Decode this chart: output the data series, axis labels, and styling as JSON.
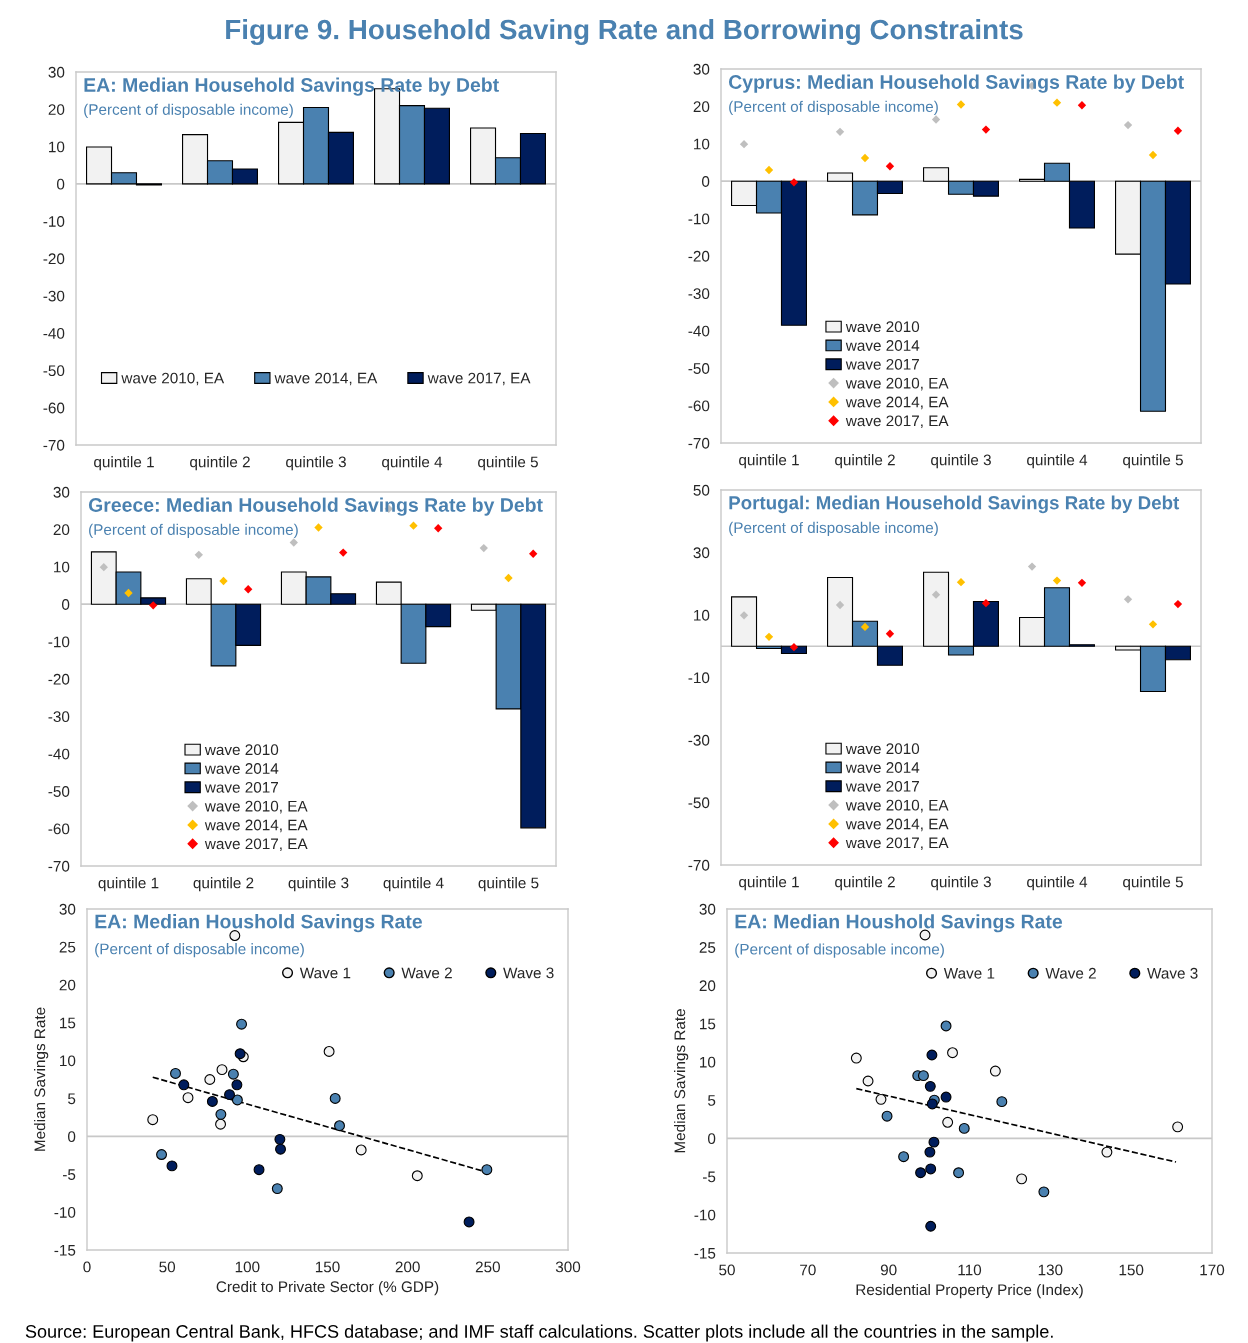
{
  "chart_data": [
    {
      "type": "bar",
      "title": "EA: Median Household Savings Rate by Debt",
      "subtitle": "(Percent of disposable income)",
      "annotations": [
        "Figure 9. Household Saving Rate and Borrowing Constraints"
      ],
      "categories": [
        "quintile 1",
        "quintile 2",
        "quintile 3",
        "quintile 4",
        "quintile 5"
      ],
      "ylim": [
        -70,
        30
      ],
      "yticks": [
        -70,
        -60,
        -50,
        -40,
        -30,
        -20,
        -10,
        0,
        10,
        20,
        30
      ],
      "legend": "bottom",
      "grid": false,
      "ref_lines": [
        {
          "axis": "y",
          "value": 0,
          "color": "#c8c8c8"
        }
      ],
      "series": [
        {
          "name": "wave 2010, EA",
          "color": "#f2f2f2",
          "values": [
            9.9,
            13.2,
            16.5,
            25.5,
            15.0
          ]
        },
        {
          "name": "wave 2014, EA",
          "color": "#4a81b0",
          "values": [
            3.0,
            6.2,
            20.5,
            21.0,
            7.0
          ]
        },
        {
          "name": "wave 2017, EA",
          "color": "#001d5c",
          "values": [
            -0.3,
            4.0,
            13.8,
            20.3,
            13.5
          ]
        }
      ]
    },
    {
      "type": "bar",
      "title": "Cyprus: Median Household Savings Rate by Debt",
      "subtitle": "(Percent of disposable income)",
      "categories": [
        "quintile 1",
        "quintile 2",
        "quintile 3",
        "quintile 4",
        "quintile 5"
      ],
      "ylim": [
        -70,
        30
      ],
      "yticks": [
        -70,
        -60,
        -50,
        -40,
        -30,
        -20,
        -10,
        0,
        10,
        20,
        30
      ],
      "legend": "bottom left",
      "grid": false,
      "ref_lines": [
        {
          "axis": "y",
          "value": 0,
          "color": "#c8c8c8"
        }
      ],
      "series": [
        {
          "name": "wave 2010",
          "color": "#f2f2f2",
          "values": [
            -6.5,
            2.2,
            3.6,
            0.5,
            -19.5
          ]
        },
        {
          "name": "wave 2014",
          "color": "#4a81b0",
          "values": [
            -8.5,
            -9.0,
            -3.5,
            4.8,
            -61.5
          ]
        },
        {
          "name": "wave 2017",
          "color": "#001d5c",
          "values": [
            -38.5,
            -3.3,
            -4.0,
            -12.5,
            -27.5
          ]
        },
        {
          "name": "wave 2010, EA",
          "type": "scatter",
          "marker": "diamond",
          "color": "#bfbfbf",
          "x": [
            "quintile 1",
            "quintile 2",
            "quintile 3",
            "quintile 4",
            "quintile 5"
          ],
          "values": [
            9.9,
            13.2,
            16.5,
            25.5,
            15.0
          ]
        },
        {
          "name": "wave 2014, EA",
          "type": "scatter",
          "marker": "diamond",
          "color": "#ffc000",
          "x": [
            "quintile 1",
            "quintile 2",
            "quintile 3",
            "quintile 4",
            "quintile 5"
          ],
          "values": [
            3.0,
            6.2,
            20.5,
            21.0,
            7.0
          ]
        },
        {
          "name": "wave 2017, EA",
          "type": "scatter",
          "marker": "diamond",
          "color": "#ff0000",
          "x": [
            "quintile 1",
            "quintile 2",
            "quintile 3",
            "quintile 4",
            "quintile 5"
          ],
          "values": [
            -0.3,
            4.0,
            13.8,
            20.3,
            13.5
          ]
        }
      ]
    },
    {
      "type": "bar",
      "title": "Greece: Median Household Savings Rate by Debt",
      "subtitle": "(Percent of disposable income)",
      "categories": [
        "quintile 1",
        "quintile 2",
        "quintile 3",
        "quintile 4",
        "quintile 5"
      ],
      "ylim": [
        -70,
        30
      ],
      "yticks": [
        -70,
        -60,
        -50,
        -40,
        -30,
        -20,
        -10,
        0,
        10,
        20,
        30
      ],
      "legend": "bottom left",
      "grid": false,
      "ref_lines": [
        {
          "axis": "y",
          "value": 0,
          "color": "#c8c8c8"
        }
      ],
      "series": [
        {
          "name": "wave 2010",
          "color": "#f2f2f2",
          "values": [
            14.0,
            6.8,
            8.6,
            5.9,
            -1.6
          ]
        },
        {
          "name": "wave 2014",
          "color": "#4a81b0",
          "values": [
            8.6,
            -16.5,
            7.3,
            -15.8,
            -28.0
          ]
        },
        {
          "name": "wave 2017",
          "color": "#001d5c",
          "values": [
            1.7,
            -11.0,
            2.8,
            -6.0,
            -59.8
          ]
        },
        {
          "name": "wave 2010, EA",
          "type": "scatter",
          "marker": "diamond",
          "color": "#bfbfbf",
          "x": [
            "quintile 1",
            "quintile 2",
            "quintile 3",
            "quintile 4",
            "quintile 5"
          ],
          "values": [
            9.9,
            13.2,
            16.5,
            25.5,
            15.0
          ]
        },
        {
          "name": "wave 2014, EA",
          "type": "scatter",
          "marker": "diamond",
          "color": "#ffc000",
          "x": [
            "quintile 1",
            "quintile 2",
            "quintile 3",
            "quintile 4",
            "quintile 5"
          ],
          "values": [
            3.0,
            6.2,
            20.5,
            21.0,
            7.0
          ]
        },
        {
          "name": "wave 2017, EA",
          "type": "scatter",
          "marker": "diamond",
          "color": "#ff0000",
          "x": [
            "quintile 1",
            "quintile 2",
            "quintile 3",
            "quintile 4",
            "quintile 5"
          ],
          "values": [
            -0.3,
            4.0,
            13.8,
            20.3,
            13.5
          ]
        }
      ]
    },
    {
      "type": "bar",
      "title": "Portugal: Median Household Savings Rate by Debt",
      "subtitle": "(Percent of disposable income)",
      "categories": [
        "quintile 1",
        "quintile 2",
        "quintile 3",
        "quintile 4",
        "quintile 5"
      ],
      "ylim": [
        -70,
        50
      ],
      "yticks": [
        -70,
        -50,
        -30,
        -10,
        10,
        30,
        50
      ],
      "legend": "bottom left",
      "grid": false,
      "ref_lines": [
        {
          "axis": "y",
          "value": 0,
          "color": "#c8c8c8"
        }
      ],
      "series": [
        {
          "name": "wave 2010",
          "color": "#f2f2f2",
          "values": [
            15.8,
            22.0,
            23.7,
            9.2,
            -1.2
          ]
        },
        {
          "name": "wave 2014",
          "color": "#4a81b0",
          "values": [
            -0.7,
            8.0,
            -2.8,
            18.7,
            -14.5
          ]
        },
        {
          "name": "wave 2017",
          "color": "#001d5c",
          "values": [
            -2.3,
            -6.1,
            14.3,
            0.5,
            -4.3
          ]
        },
        {
          "name": "wave 2010, EA",
          "type": "scatter",
          "marker": "diamond",
          "color": "#bfbfbf",
          "x": [
            "quintile 1",
            "quintile 2",
            "quintile 3",
            "quintile 4",
            "quintile 5"
          ],
          "values": [
            9.9,
            13.2,
            16.5,
            25.5,
            15.0
          ]
        },
        {
          "name": "wave 2014, EA",
          "type": "scatter",
          "marker": "diamond",
          "color": "#ffc000",
          "x": [
            "quintile 1",
            "quintile 2",
            "quintile 3",
            "quintile 4",
            "quintile 5"
          ],
          "values": [
            3.0,
            6.2,
            20.5,
            21.0,
            7.0
          ]
        },
        {
          "name": "wave 2017, EA",
          "type": "scatter",
          "marker": "diamond",
          "color": "#ff0000",
          "x": [
            "quintile 1",
            "quintile 2",
            "quintile 3",
            "quintile 4",
            "quintile 5"
          ],
          "values": [
            -0.3,
            4.0,
            13.8,
            20.3,
            13.5
          ]
        }
      ]
    },
    {
      "type": "scatter",
      "title": "EA: Median Houshold Savings Rate",
      "subtitle": "(Percent of disposable income)",
      "xlabel": "Credit to Private Sector (% GDP)",
      "ylabel": "Median Savings Rate",
      "xlim": [
        0,
        300
      ],
      "xticks": [
        0,
        50,
        100,
        150,
        200,
        250,
        300
      ],
      "ylim": [
        -15,
        30
      ],
      "yticks": [
        -15,
        -10,
        -5,
        0,
        5,
        10,
        15,
        20,
        25,
        30
      ],
      "legend": "top right",
      "grid": false,
      "marker": "circle",
      "series": [
        {
          "name": "Wave 1",
          "color": "#f2f2f2",
          "x": [
            41,
            63,
            76.6,
            84.2,
            83.3,
            92.2,
            97.5,
            151,
            171,
            206
          ],
          "values": [
            2.2,
            5.1,
            7.5,
            8.8,
            1.6,
            26.5,
            10.5,
            11.2,
            -1.8,
            -5.2
          ]
        },
        {
          "name": "Wave 2",
          "color": "#4a81b0",
          "x": [
            46.5,
            55.2,
            83.5,
            91.3,
            93.8,
            96.4,
            154.8,
            157.5,
            118.7,
            249.4
          ],
          "values": [
            -2.4,
            8.3,
            2.9,
            8.2,
            4.8,
            14.8,
            5.0,
            1.4,
            -6.9,
            -4.4
          ]
        },
        {
          "name": "Wave 3",
          "color": "#001d5c",
          "x": [
            53,
            60.4,
            78.2,
            88.9,
            93.5,
            95.5,
            107.3,
            120.3,
            120.7,
            238.3
          ],
          "values": [
            -3.9,
            6.8,
            4.6,
            5.5,
            6.8,
            10.9,
            -4.4,
            -0.4,
            -1.7,
            -11.3
          ]
        },
        {
          "type": "line",
          "line_style": "dashed",
          "marker": "none",
          "color": "#000000",
          "x": [
            41,
            249
          ],
          "values": [
            7.8,
            -4.7
          ]
        }
      ],
      "ref_lines": [
        {
          "axis": "y",
          "value": 0,
          "color": "#c8c8c8"
        }
      ]
    },
    {
      "type": "scatter",
      "title": "EA: Median Houshold Savings Rate",
      "subtitle": "(Percent of disposable income)",
      "xlabel": "Residential Property Price (Index)",
      "ylabel": "Median Savings Rate",
      "xlim": [
        50,
        170
      ],
      "xticks": [
        50,
        70,
        90,
        110,
        130,
        150,
        170
      ],
      "ylim": [
        -15,
        30
      ],
      "yticks": [
        -15,
        -10,
        -5,
        0,
        5,
        10,
        15,
        20,
        25,
        30
      ],
      "legend": "top right",
      "grid": false,
      "marker": "circle",
      "annotations": [
        "Source: European Central Bank, HFCS database; and IMF staff calculations. Scatter plots include all the countries in the sample."
      ],
      "series": [
        {
          "name": "Wave 1",
          "color": "#f2f2f2",
          "x": [
            82.0,
            84.9,
            88.1,
            99.0,
            104.6,
            105.8,
            116.4,
            122.9,
            144.0,
            161.5
          ],
          "values": [
            10.5,
            7.5,
            5.1,
            26.6,
            2.1,
            11.2,
            8.8,
            -5.3,
            -1.8,
            1.5
          ]
        },
        {
          "name": "Wave 2",
          "color": "#4a81b0",
          "x": [
            89.6,
            93.7,
            97.2,
            98.6,
            101.3,
            104.2,
            107.3,
            108.7,
            118.0,
            128.4
          ],
          "values": [
            2.9,
            -2.4,
            8.2,
            8.2,
            5.0,
            14.7,
            -4.5,
            1.3,
            4.8,
            -7.0
          ]
        },
        {
          "name": "Wave 3",
          "color": "#001d5c",
          "x": [
            97.9,
            100.2,
            100.3,
            100.4,
            100.7,
            100.8,
            101.2,
            104.2,
            100.4
          ],
          "values": [
            -4.5,
            -1.8,
            6.8,
            -4.0,
            10.9,
            4.5,
            -0.5,
            5.4,
            -11.5
          ]
        },
        {
          "type": "line",
          "line_style": "dashed",
          "marker": "none",
          "color": "#000000",
          "x": [
            82,
            161.1
          ],
          "values": [
            6.5,
            -3.1
          ]
        }
      ],
      "ref_lines": [
        {
          "axis": "y",
          "value": 0,
          "color": "#c8c8c8"
        }
      ]
    }
  ]
}
